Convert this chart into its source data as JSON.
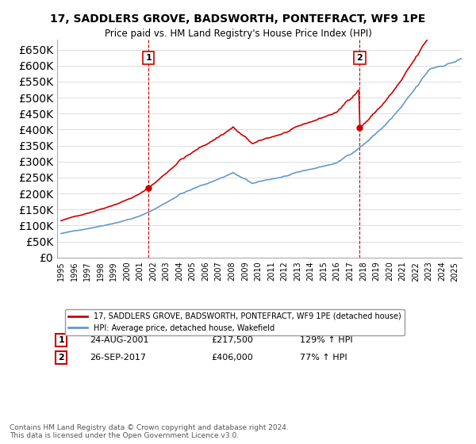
{
  "title": "17, SADDLERS GROVE, BADSWORTH, PONTEFRACT, WF9 1PE",
  "subtitle": "Price paid vs. HM Land Registry's House Price Index (HPI)",
  "ylim": [
    0,
    650000
  ],
  "yticks": [
    0,
    50000,
    100000,
    150000,
    200000,
    250000,
    300000,
    350000,
    400000,
    450000,
    500000,
    550000,
    600000,
    650000
  ],
  "xlim_start": 1995.0,
  "xlim_end": 2025.5,
  "red_line_color": "#cc0000",
  "blue_line_color": "#6699cc",
  "purchase1_date": 2001.65,
  "purchase1_price": 217500,
  "purchase1_label": "1",
  "purchase1_display": "24-AUG-2001",
  "purchase1_price_display": "£217,500",
  "purchase1_hpi": "129% ↑ HPI",
  "purchase2_date": 2017.73,
  "purchase2_price": 406000,
  "purchase2_label": "2",
  "purchase2_display": "26-SEP-2017",
  "purchase2_price_display": "£406,000",
  "purchase2_hpi": "77% ↑ HPI",
  "legend_label_red": "17, SADDLERS GROVE, BADSWORTH, PONTEFRACT, WF9 1PE (detached house)",
  "legend_label_blue": "HPI: Average price, detached house, Wakefield",
  "footer": "Contains HM Land Registry data © Crown copyright and database right 2024.\nThis data is licensed under the Open Government Licence v3.0.",
  "background_color": "#ffffff",
  "grid_color": "#dddddd"
}
